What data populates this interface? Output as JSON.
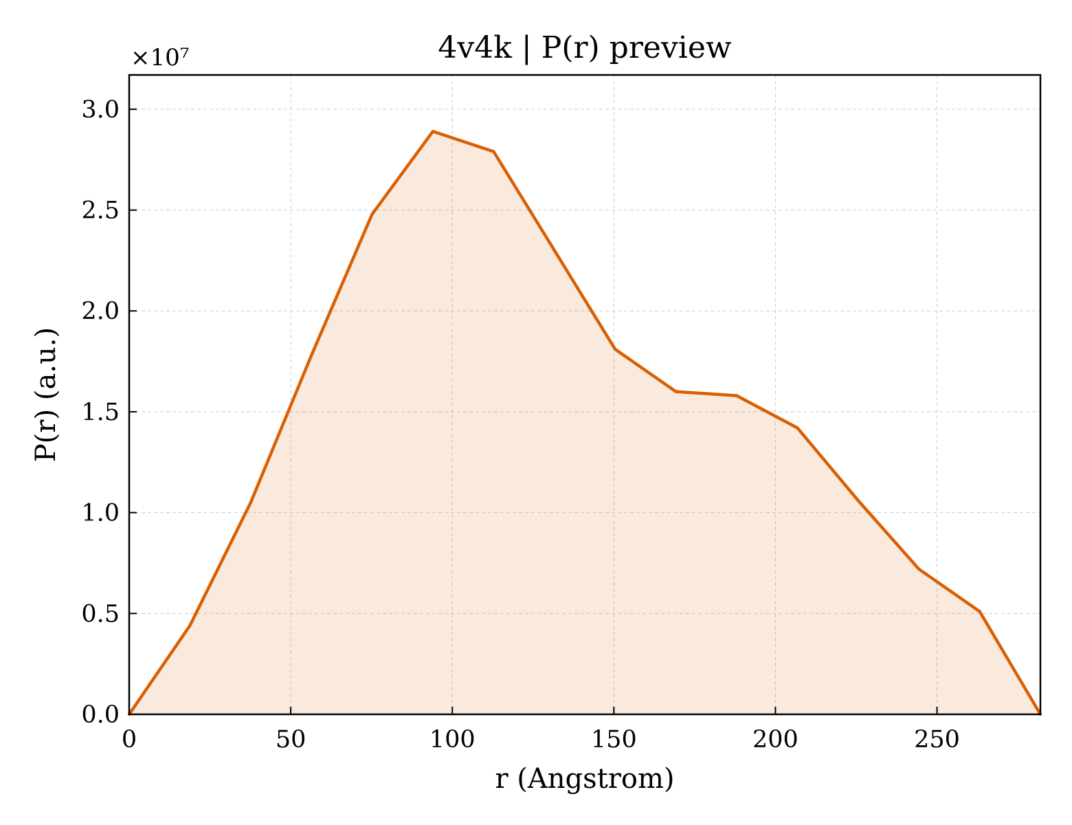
{
  "chart_data": {
    "type": "area",
    "title": "4v4k | P(r) preview",
    "xlabel": "r (Angstrom)",
    "ylabel": "P(r) (a.u.)",
    "y_offset_label": "×10⁷",
    "y_scale": 10000000,
    "xlim": [
      0,
      282
    ],
    "ylim": [
      0,
      3.17
    ],
    "x_ticks": [
      0,
      50,
      100,
      150,
      200,
      250
    ],
    "x_tick_labels": [
      "0",
      "50",
      "100",
      "150",
      "200",
      "250"
    ],
    "y_ticks": [
      0.0,
      0.5,
      1.0,
      1.5,
      2.0,
      2.5,
      3.0
    ],
    "y_tick_labels": [
      "0.0",
      "0.5",
      "1.0",
      "1.5",
      "2.0",
      "2.5",
      "3.0"
    ],
    "grid": true,
    "series": [
      {
        "color": "#d95f02",
        "fill_color": "#d95f02",
        "fill_opacity": 0.13,
        "x": [
          0,
          18.8,
          37.6,
          56.4,
          75.2,
          94.0,
          112.8,
          131.6,
          150.4,
          169.2,
          188.0,
          206.8,
          225.6,
          244.4,
          263.2,
          282.0
        ],
        "y": [
          0.0,
          0.44,
          1.05,
          1.78,
          2.48,
          2.89,
          2.79,
          2.3,
          1.81,
          1.6,
          1.58,
          1.42,
          1.06,
          0.72,
          0.51,
          0.0
        ]
      }
    ]
  }
}
